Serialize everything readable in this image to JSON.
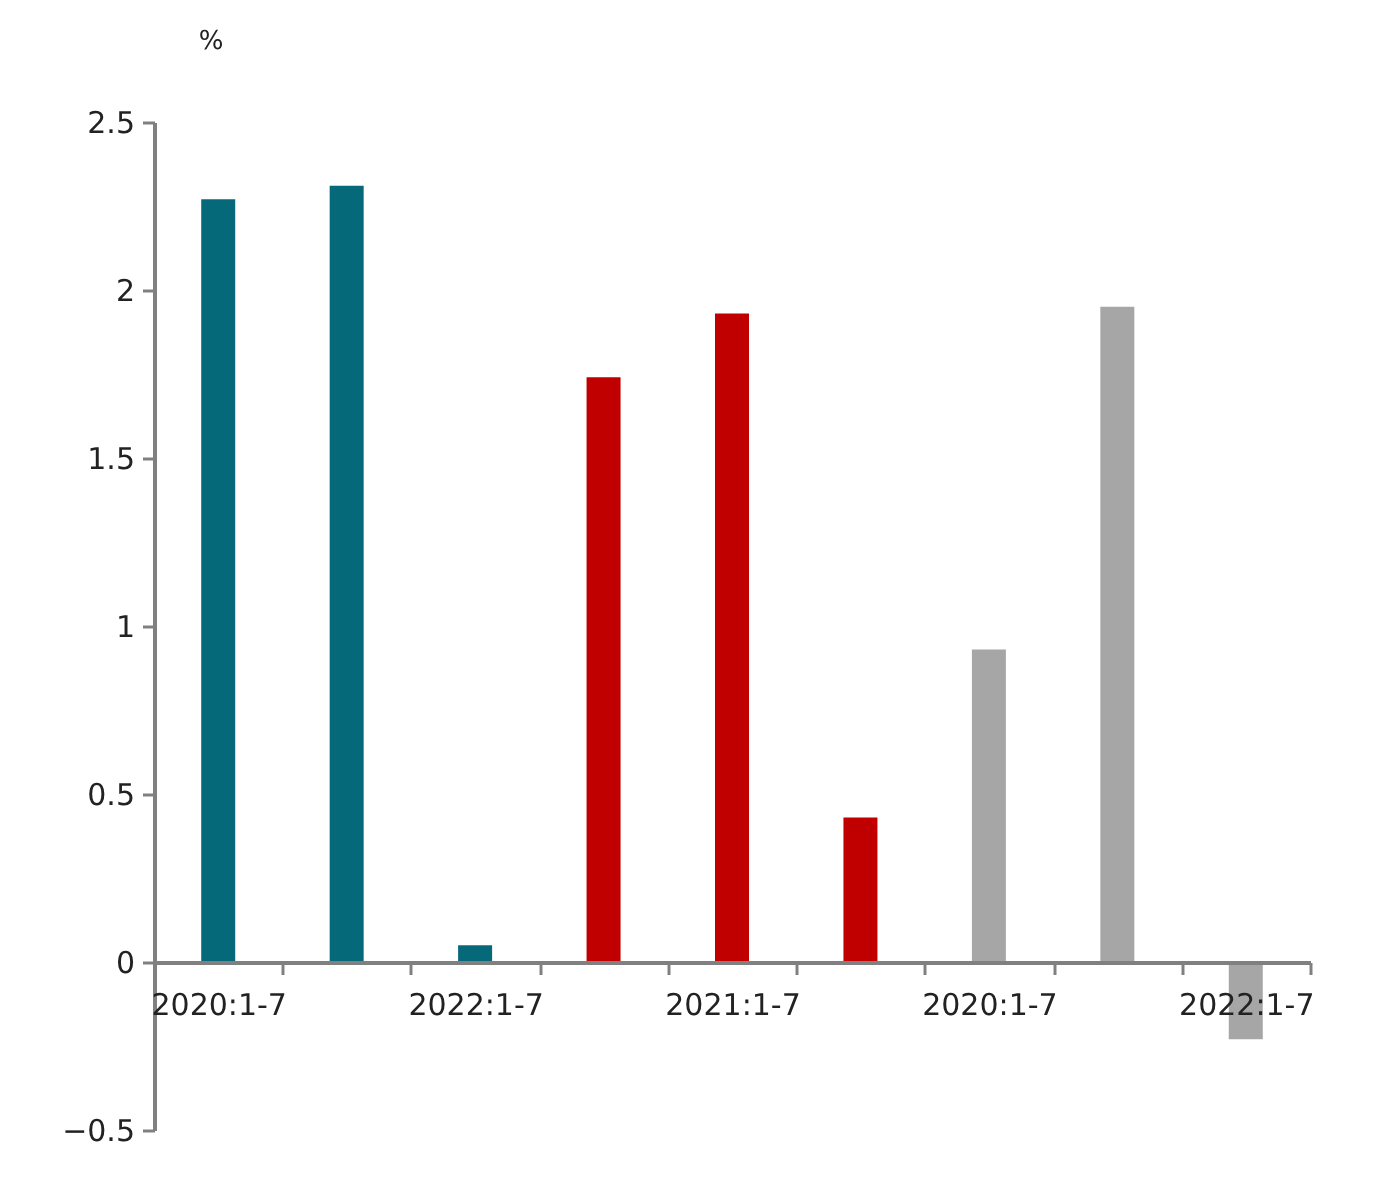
{
  "chart_data": {
    "type": "bar",
    "ylabel": "%",
    "categories": [
      "2020:1-7",
      null,
      "2022:1-7",
      null,
      "2021:1-7",
      null,
      "2020:1-7",
      null,
      "2022:1-7"
    ],
    "values": [
      2.27,
      2.31,
      0.05,
      1.74,
      1.93,
      0.43,
      0.93,
      1.95,
      -0.23
    ],
    "colors": [
      "#05697a",
      "#05697a",
      "#05697a",
      "#c00000",
      "#c00000",
      "#c00000",
      "#a6a6a6",
      "#a6a6a6",
      "#a6a6a6"
    ],
    "ylim": [
      -0.5,
      2.5
    ],
    "yticks": [
      -0.5,
      0,
      0.5,
      1,
      1.5,
      2,
      2.5
    ]
  }
}
